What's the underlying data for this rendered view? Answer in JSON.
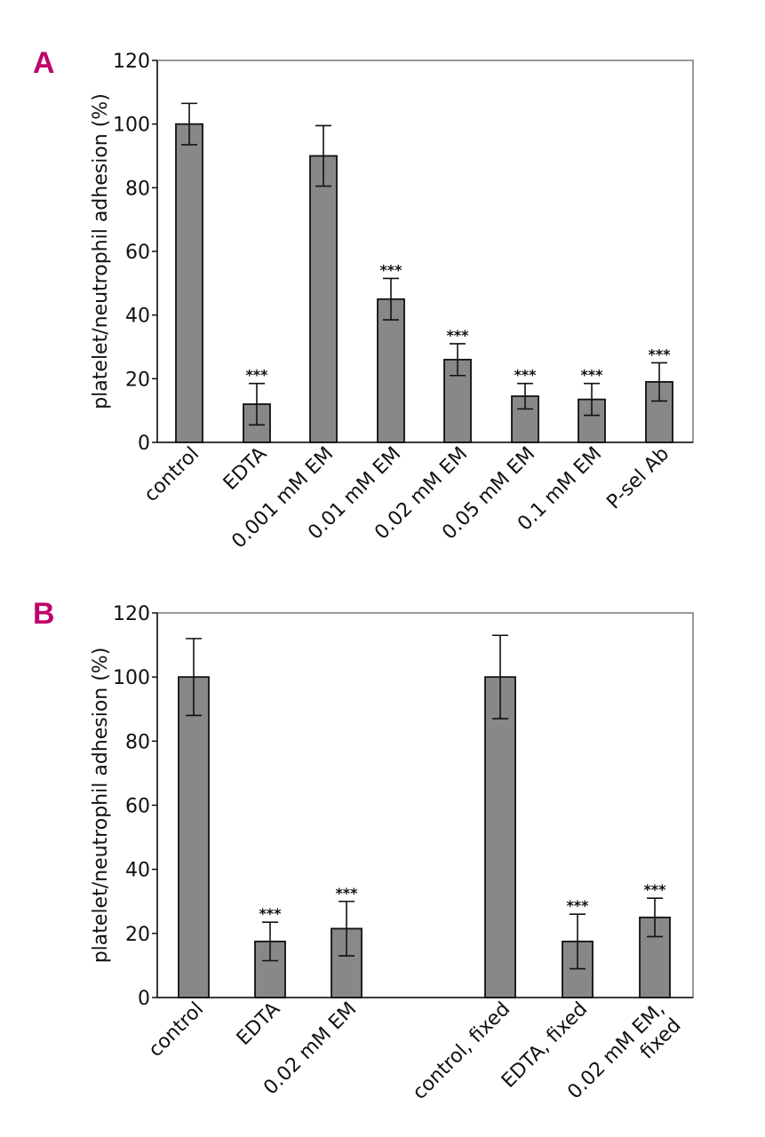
{
  "chart_data": [
    {
      "panel": "A",
      "type": "bar",
      "ylabel": "platelet/neutrophil adhesion (%)",
      "ylim": [
        0,
        120
      ],
      "yticks": [
        0,
        20,
        40,
        60,
        80,
        100,
        120
      ],
      "categories": [
        "control",
        "EDTA",
        "0.001 mM EM",
        "0.01 mM EM",
        "0.02 mM EM",
        "0.05 mM EM",
        "0.1 mM EM",
        "P-sel Ab"
      ],
      "values": [
        100,
        12,
        90,
        45,
        26,
        14.5,
        13.5,
        19
      ],
      "errors": [
        6.5,
        6.5,
        9.5,
        6.5,
        5,
        4,
        5,
        6
      ],
      "significance": [
        "",
        "***",
        "",
        "***",
        "***",
        "***",
        "***",
        "***"
      ],
      "bar_color": "#888888",
      "grid": false
    },
    {
      "panel": "B",
      "type": "bar",
      "ylabel": "platelet/neutrophil adhesion (%)",
      "ylim": [
        0,
        120
      ],
      "yticks": [
        0,
        20,
        40,
        60,
        80,
        100,
        120
      ],
      "categories": [
        "control",
        "EDTA",
        "0.02 mM EM",
        "",
        "control, fixed",
        "EDTA, fixed",
        "0.02 mM EM, fixed"
      ],
      "values": [
        100,
        17.5,
        21.5,
        null,
        100,
        17.5,
        25
      ],
      "errors": [
        12,
        6,
        8.5,
        null,
        13,
        8.5,
        6
      ],
      "significance": [
        "",
        "***",
        "***",
        "",
        "",
        "***",
        "***"
      ],
      "bar_color": "#888888",
      "grid": false
    }
  ]
}
